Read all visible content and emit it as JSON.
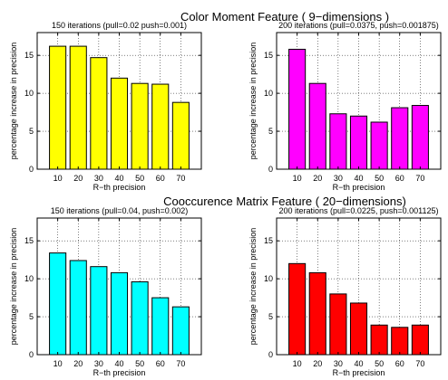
{
  "row_titles": [
    "Color Moment Feature ( 9−dimensions )",
    "Cooccurence Matrix Feature ( 20−dimensions)"
  ],
  "chart_data": [
    {
      "type": "bar",
      "title": "150 iterations (pull=0.02 push=0.001)",
      "xlabel": "R−th precision",
      "ylabel": "percentage increase in precision",
      "categories": [
        "10",
        "20",
        "30",
        "40",
        "50",
        "60",
        "70"
      ],
      "values": [
        16.2,
        16.2,
        14.7,
        12.0,
        11.3,
        11.2,
        8.8
      ],
      "ylim": [
        0,
        18
      ],
      "yticks": [
        0,
        5,
        10,
        15
      ],
      "color": "#ffff00",
      "grid": true
    },
    {
      "type": "bar",
      "title": "200 iterations (pull=0.0375, push=0.001875)",
      "xlabel": "R−th precision",
      "ylabel": "percentage increase in precision",
      "categories": [
        "10",
        "20",
        "30",
        "40",
        "50",
        "60",
        "70"
      ],
      "values": [
        15.8,
        11.3,
        7.3,
        7.0,
        6.2,
        8.1,
        8.4
      ],
      "ylim": [
        0,
        18
      ],
      "yticks": [
        0,
        5,
        10,
        15
      ],
      "color": "#ff00ff",
      "grid": true
    },
    {
      "type": "bar",
      "title": "150 iterations (pull=0.04, push=0.002)",
      "xlabel": "R−th precision",
      "ylabel": "percentage increase in precision",
      "categories": [
        "10",
        "20",
        "30",
        "40",
        "50",
        "60",
        "70"
      ],
      "values": [
        13.4,
        12.4,
        11.6,
        10.8,
        9.6,
        7.5,
        6.3
      ],
      "ylim": [
        0,
        18
      ],
      "yticks": [
        0,
        5,
        10,
        15
      ],
      "color": "#00ffff",
      "grid": true
    },
    {
      "type": "bar",
      "title": "200 iterations (pull=0.0225, push=0.001125)",
      "xlabel": "R−th precision",
      "ylabel": "percentage increase in precision",
      "categories": [
        "10",
        "20",
        "30",
        "40",
        "50",
        "60",
        "70"
      ],
      "values": [
        12.0,
        10.8,
        8.0,
        6.8,
        3.9,
        3.6,
        3.9
      ],
      "ylim": [
        0,
        18
      ],
      "yticks": [
        0,
        5,
        10,
        15
      ],
      "color": "#ff0000",
      "grid": true
    }
  ]
}
